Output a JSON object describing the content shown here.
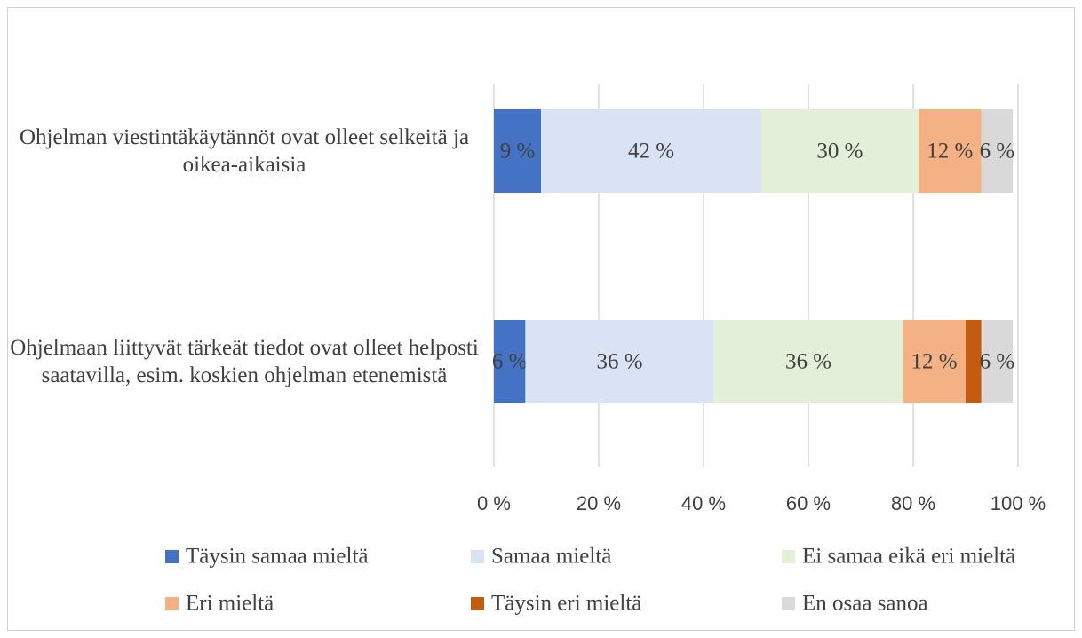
{
  "chart_data": {
    "type": "stacked_barh",
    "categories": [
      "Ohjelman viestintäkäytännöt ovat olleet selkeitä ja oikea-aikaisia",
      "Ohjelmaan liittyvät tärkeät tiedot ovat olleet helposti saatavilla, esim. koskien ohjelman etenemistä"
    ],
    "series": [
      {
        "name": "Täysin samaa mieltä",
        "color": "#4472c4",
        "values": [
          9,
          6
        ],
        "value_labels": [
          "9 %",
          "6 %"
        ]
      },
      {
        "name": "Samaa mieltä",
        "color": "#dae3f3",
        "values": [
          42,
          36
        ],
        "value_labels": [
          "42 %",
          "36 %"
        ]
      },
      {
        "name": "Ei samaa eikä eri mieltä",
        "color": "#e2f0d9",
        "values": [
          30,
          36
        ],
        "value_labels": [
          "30 %",
          "36 %"
        ]
      },
      {
        "name": "Eri mieltä",
        "color": "#f4b183",
        "values": [
          12,
          12
        ],
        "value_labels": [
          "12 %",
          "12 %"
        ]
      },
      {
        "name": "Täysin eri mieltä",
        "color": "#c55a11",
        "values": [
          0,
          3
        ],
        "value_labels": [
          null,
          null
        ]
      },
      {
        "name": "En osaa sanoa",
        "color": "#d9d9d9",
        "values": [
          6,
          6
        ],
        "value_labels": [
          "6 %",
          "6 %"
        ]
      }
    ],
    "xlim": [
      0,
      100
    ],
    "xticks": [
      {
        "value": 0,
        "label": "0 %"
      },
      {
        "value": 20,
        "label": "20 %"
      },
      {
        "value": 40,
        "label": "40 %"
      },
      {
        "value": 60,
        "label": "60 %"
      },
      {
        "value": 80,
        "label": "80 %"
      },
      {
        "value": 100,
        "label": "100 %"
      }
    ],
    "grid": true,
    "legend": "bottom"
  }
}
